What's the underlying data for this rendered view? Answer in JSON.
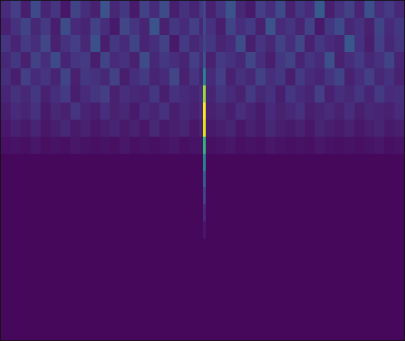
{
  "chart_data": {
    "type": "heatmap",
    "color": "viridis",
    "tick_labels": false,
    "xlim": [
      0,
      569
    ],
    "ylim": [
      480,
      0
    ],
    "zlim": [
      0,
      1
    ],
    "x": [
      0,
      14,
      28,
      42,
      56,
      70,
      84,
      98,
      112,
      126,
      140,
      154,
      168,
      182,
      196,
      210,
      224,
      238,
      252,
      266,
      280,
      285,
      289,
      303,
      317,
      331,
      345,
      359,
      373,
      387,
      401,
      415,
      429,
      443,
      457,
      471,
      485,
      499,
      513,
      527,
      541,
      555,
      569
    ],
    "y": [
      0,
      24,
      48,
      72,
      96,
      120,
      144,
      168,
      192,
      216,
      240,
      264,
      288,
      312,
      336,
      360,
      384,
      408,
      432,
      456,
      480
    ],
    "cells": [
      [
        0.12,
        0.18,
        0.08,
        0.22,
        0.1,
        0.15,
        0.06,
        0.2,
        0.13,
        0.09,
        0.25,
        0.11,
        0.16,
        0.07,
        0.19,
        0.12,
        0.23,
        0.08,
        0.14,
        0.1,
        0.17,
        0.21,
        0.09,
        0.15,
        0.26,
        0.11,
        0.07,
        0.18,
        0.13,
        0.22,
        0.09,
        0.16,
        0.12,
        0.28,
        0.08,
        0.14,
        0.19,
        0.1,
        0.24,
        0.13,
        0.17,
        0.11
      ],
      [
        0.09,
        0.14,
        0.2,
        0.11,
        0.17,
        0.08,
        0.23,
        0.12,
        0.1,
        0.19,
        0.13,
        0.07,
        0.21,
        0.15,
        0.1,
        0.26,
        0.09,
        0.16,
        0.12,
        0.18,
        0.11,
        0.22,
        0.14,
        0.08,
        0.2,
        0.13,
        0.17,
        0.09,
        0.25,
        0.12,
        0.15,
        0.1,
        0.19,
        0.07,
        0.16,
        0.22,
        0.11,
        0.14,
        0.09,
        0.2,
        0.12,
        0.16
      ],
      [
        0.15,
        0.1,
        0.17,
        0.13,
        0.21,
        0.09,
        0.14,
        0.18,
        0.11,
        0.24,
        0.08,
        0.16,
        0.12,
        0.2,
        0.1,
        0.13,
        0.19,
        0.07,
        0.17,
        0.11,
        0.14,
        0.2,
        0.16,
        0.1,
        0.12,
        0.23,
        0.08,
        0.15,
        0.11,
        0.19,
        0.13,
        0.21,
        0.09,
        0.16,
        0.12,
        0.1,
        0.27,
        0.14,
        0.08,
        0.18,
        0.11,
        0.15
      ],
      [
        0.11,
        0.16,
        0.09,
        0.19,
        0.13,
        0.22,
        0.1,
        0.15,
        0.17,
        0.08,
        0.2,
        0.12,
        0.14,
        0.09,
        0.23,
        0.11,
        0.16,
        0.13,
        0.1,
        0.18,
        0.12,
        0.26,
        0.09,
        0.17,
        0.14,
        0.11,
        0.21,
        0.13,
        0.08,
        0.16,
        0.19,
        0.1,
        0.15,
        0.12,
        0.24,
        0.09,
        0.13,
        0.17,
        0.11,
        0.14,
        0.2,
        0.1
      ],
      [
        0.13,
        0.08,
        0.18,
        0.12,
        0.15,
        0.1,
        0.2,
        0.09,
        0.16,
        0.14,
        0.11,
        0.19,
        0.08,
        0.13,
        0.17,
        0.1,
        0.12,
        0.21,
        0.09,
        0.15,
        0.1,
        0.45,
        0.12,
        0.18,
        0.09,
        0.14,
        0.11,
        0.19,
        0.13,
        0.16,
        0.08,
        0.17,
        0.12,
        0.1,
        0.15,
        0.2,
        0.09,
        0.13,
        0.18,
        0.11,
        0.14,
        0.09
      ],
      [
        0.1,
        0.14,
        0.11,
        0.16,
        0.09,
        0.13,
        0.17,
        0.08,
        0.12,
        0.15,
        0.18,
        0.09,
        0.13,
        0.11,
        0.1,
        0.16,
        0.08,
        0.14,
        0.12,
        0.1,
        0.13,
        0.85,
        0.1,
        0.15,
        0.12,
        0.09,
        0.17,
        0.11,
        0.14,
        0.08,
        0.16,
        0.12,
        0.1,
        0.18,
        0.09,
        0.13,
        0.11,
        0.15,
        0.1,
        0.17,
        0.12,
        0.13
      ],
      [
        0.08,
        0.12,
        0.1,
        0.14,
        0.07,
        0.11,
        0.09,
        0.15,
        0.1,
        0.08,
        0.13,
        0.09,
        0.11,
        0.07,
        0.12,
        0.1,
        0.14,
        0.08,
        0.11,
        0.09,
        0.12,
        1.0,
        0.09,
        0.11,
        0.08,
        0.13,
        0.1,
        0.07,
        0.12,
        0.09,
        0.11,
        0.14,
        0.08,
        0.1,
        0.12,
        0.09,
        0.13,
        0.08,
        0.11,
        0.1,
        0.09,
        0.12
      ],
      [
        0.06,
        0.09,
        0.07,
        0.1,
        0.06,
        0.08,
        0.11,
        0.07,
        0.09,
        0.06,
        0.08,
        0.1,
        0.07,
        0.09,
        0.06,
        0.11,
        0.07,
        0.08,
        0.1,
        0.06,
        0.09,
        0.95,
        0.07,
        0.08,
        0.1,
        0.06,
        0.09,
        0.07,
        0.11,
        0.08,
        0.07,
        0.09,
        0.06,
        0.1,
        0.08,
        0.07,
        0.09,
        0.06,
        0.08,
        0.1,
        0.07,
        0.08
      ],
      [
        0.04,
        0.05,
        0.04,
        0.06,
        0.04,
        0.05,
        0.04,
        0.06,
        0.05,
        0.04,
        0.05,
        0.04,
        0.06,
        0.04,
        0.05,
        0.04,
        0.05,
        0.06,
        0.04,
        0.05,
        0.05,
        0.65,
        0.04,
        0.05,
        0.06,
        0.04,
        0.05,
        0.04,
        0.06,
        0.05,
        0.04,
        0.05,
        0.04,
        0.06,
        0.05,
        0.04,
        0.05,
        0.04,
        0.05,
        0.06,
        0.04,
        0.05
      ],
      [
        0.02,
        0.02,
        0.02,
        0.02,
        0.02,
        0.02,
        0.02,
        0.02,
        0.02,
        0.02,
        0.02,
        0.02,
        0.02,
        0.02,
        0.02,
        0.02,
        0.02,
        0.02,
        0.02,
        0.02,
        0.02,
        0.45,
        0.02,
        0.02,
        0.02,
        0.02,
        0.02,
        0.02,
        0.02,
        0.02,
        0.02,
        0.02,
        0.02,
        0.02,
        0.02,
        0.02,
        0.02,
        0.02,
        0.02,
        0.02,
        0.02,
        0.02
      ],
      [
        0.02,
        0.02,
        0.02,
        0.02,
        0.02,
        0.02,
        0.02,
        0.02,
        0.02,
        0.02,
        0.02,
        0.02,
        0.02,
        0.02,
        0.02,
        0.02,
        0.02,
        0.02,
        0.02,
        0.02,
        0.02,
        0.3,
        0.02,
        0.02,
        0.02,
        0.02,
        0.02,
        0.02,
        0.02,
        0.02,
        0.02,
        0.02,
        0.02,
        0.02,
        0.02,
        0.02,
        0.02,
        0.02,
        0.02,
        0.02,
        0.02,
        0.02
      ],
      [
        0.02,
        0.02,
        0.02,
        0.02,
        0.02,
        0.02,
        0.02,
        0.02,
        0.02,
        0.02,
        0.02,
        0.02,
        0.02,
        0.02,
        0.02,
        0.02,
        0.02,
        0.02,
        0.02,
        0.02,
        0.02,
        0.2,
        0.02,
        0.02,
        0.02,
        0.02,
        0.02,
        0.02,
        0.02,
        0.02,
        0.02,
        0.02,
        0.02,
        0.02,
        0.02,
        0.02,
        0.02,
        0.02,
        0.02,
        0.02,
        0.02,
        0.02
      ],
      [
        0.02,
        0.02,
        0.02,
        0.02,
        0.02,
        0.02,
        0.02,
        0.02,
        0.02,
        0.02,
        0.02,
        0.02,
        0.02,
        0.02,
        0.02,
        0.02,
        0.02,
        0.02,
        0.02,
        0.02,
        0.02,
        0.12,
        0.02,
        0.02,
        0.02,
        0.02,
        0.02,
        0.02,
        0.02,
        0.02,
        0.02,
        0.02,
        0.02,
        0.02,
        0.02,
        0.02,
        0.02,
        0.02,
        0.02,
        0.02,
        0.02,
        0.02
      ],
      [
        0.02,
        0.02,
        0.02,
        0.02,
        0.02,
        0.02,
        0.02,
        0.02,
        0.02,
        0.02,
        0.02,
        0.02,
        0.02,
        0.02,
        0.02,
        0.02,
        0.02,
        0.02,
        0.02,
        0.02,
        0.02,
        0.06,
        0.02,
        0.02,
        0.02,
        0.02,
        0.02,
        0.02,
        0.02,
        0.02,
        0.02,
        0.02,
        0.02,
        0.02,
        0.02,
        0.02,
        0.02,
        0.02,
        0.02,
        0.02,
        0.02,
        0.02
      ],
      [
        0.02,
        0.02,
        0.02,
        0.02,
        0.02,
        0.02,
        0.02,
        0.02,
        0.02,
        0.02,
        0.02,
        0.02,
        0.02,
        0.02,
        0.02,
        0.02,
        0.02,
        0.02,
        0.02,
        0.02,
        0.02,
        0.02,
        0.02,
        0.02,
        0.02,
        0.02,
        0.02,
        0.02,
        0.02,
        0.02,
        0.02,
        0.02,
        0.02,
        0.02,
        0.02,
        0.02,
        0.02,
        0.02,
        0.02,
        0.02,
        0.02,
        0.02
      ],
      [
        0.02,
        0.02,
        0.02,
        0.02,
        0.02,
        0.02,
        0.02,
        0.02,
        0.02,
        0.02,
        0.02,
        0.02,
        0.02,
        0.02,
        0.02,
        0.02,
        0.02,
        0.02,
        0.02,
        0.02,
        0.02,
        0.02,
        0.02,
        0.02,
        0.02,
        0.02,
        0.02,
        0.02,
        0.02,
        0.02,
        0.02,
        0.02,
        0.02,
        0.02,
        0.02,
        0.02,
        0.02,
        0.02,
        0.02,
        0.02,
        0.02,
        0.02
      ],
      [
        0.02,
        0.02,
        0.02,
        0.02,
        0.02,
        0.02,
        0.02,
        0.02,
        0.02,
        0.02,
        0.02,
        0.02,
        0.02,
        0.02,
        0.02,
        0.02,
        0.02,
        0.02,
        0.02,
        0.02,
        0.02,
        0.02,
        0.02,
        0.02,
        0.02,
        0.02,
        0.02,
        0.02,
        0.02,
        0.02,
        0.02,
        0.02,
        0.02,
        0.02,
        0.02,
        0.02,
        0.02,
        0.02,
        0.02,
        0.02,
        0.02,
        0.02
      ],
      [
        0.02,
        0.02,
        0.02,
        0.02,
        0.02,
        0.02,
        0.02,
        0.02,
        0.02,
        0.02,
        0.02,
        0.02,
        0.02,
        0.02,
        0.02,
        0.02,
        0.02,
        0.02,
        0.02,
        0.02,
        0.02,
        0.02,
        0.02,
        0.02,
        0.02,
        0.02,
        0.02,
        0.02,
        0.02,
        0.02,
        0.02,
        0.02,
        0.02,
        0.02,
        0.02,
        0.02,
        0.02,
        0.02,
        0.02,
        0.02,
        0.02,
        0.02
      ],
      [
        0.02,
        0.02,
        0.02,
        0.02,
        0.02,
        0.02,
        0.02,
        0.02,
        0.02,
        0.02,
        0.02,
        0.02,
        0.02,
        0.02,
        0.02,
        0.02,
        0.02,
        0.02,
        0.02,
        0.02,
        0.02,
        0.02,
        0.02,
        0.02,
        0.02,
        0.02,
        0.02,
        0.02,
        0.02,
        0.02,
        0.02,
        0.02,
        0.02,
        0.02,
        0.02,
        0.02,
        0.02,
        0.02,
        0.02,
        0.02,
        0.02,
        0.02
      ],
      [
        0.02,
        0.02,
        0.02,
        0.02,
        0.02,
        0.02,
        0.02,
        0.02,
        0.02,
        0.02,
        0.02,
        0.02,
        0.02,
        0.02,
        0.02,
        0.02,
        0.02,
        0.02,
        0.02,
        0.02,
        0.02,
        0.02,
        0.02,
        0.02,
        0.02,
        0.02,
        0.02,
        0.02,
        0.02,
        0.02,
        0.02,
        0.02,
        0.02,
        0.02,
        0.02,
        0.02,
        0.02,
        0.02,
        0.02,
        0.02,
        0.02,
        0.02
      ]
    ]
  }
}
